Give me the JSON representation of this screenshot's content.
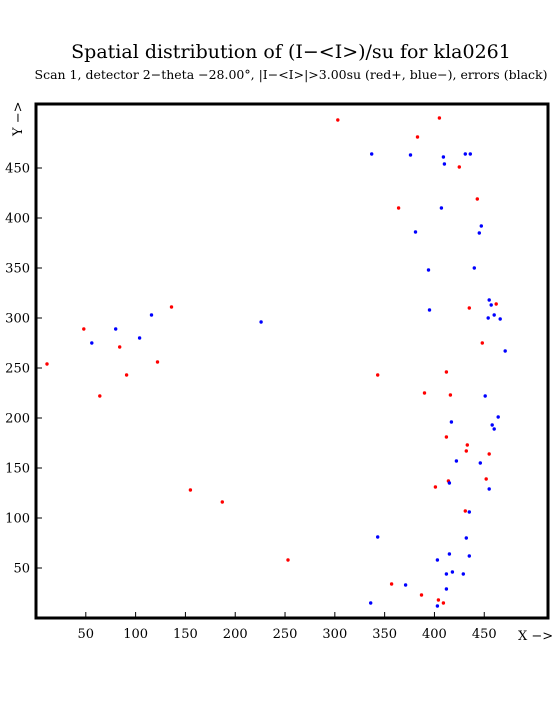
{
  "chart_data": {
    "type": "scatter",
    "title": "Spatial distribution of (I−<I>)/su for kla0261",
    "subtitle": "Scan  1, detector 2−theta −28.00°, |I−<I>|>3.00su (red+, blue−), errors (black)",
    "xlabel": "X −>",
    "ylabel": "Y −>",
    "xlim": [
      0,
      514
    ],
    "ylim": [
      0,
      514
    ],
    "x_ticks": [
      50,
      100,
      150,
      200,
      250,
      300,
      350,
      400,
      450
    ],
    "y_ticks": [
      50,
      100,
      150,
      200,
      250,
      300,
      350,
      400,
      450
    ],
    "grid": false,
    "series": [
      {
        "name": "red+",
        "color": "#ff0000",
        "points": [
          [
            303,
            498
          ],
          [
            405,
            500
          ],
          [
            383,
            481
          ],
          [
            425,
            451
          ],
          [
            443,
            419
          ],
          [
            364,
            410
          ],
          [
            136,
            311
          ],
          [
            48,
            289
          ],
          [
            435,
            310
          ],
          [
            462,
            314
          ],
          [
            84,
            271
          ],
          [
            122,
            256
          ],
          [
            11,
            254
          ],
          [
            448,
            275
          ],
          [
            91,
            243
          ],
          [
            343,
            243
          ],
          [
            412,
            246
          ],
          [
            64,
            222
          ],
          [
            390,
            225
          ],
          [
            416,
            223
          ],
          [
            412,
            181
          ],
          [
            433,
            173
          ],
          [
            432,
            167
          ],
          [
            455,
            164
          ],
          [
            414,
            137
          ],
          [
            452,
            139
          ],
          [
            155,
            128
          ],
          [
            401,
            131
          ],
          [
            187,
            116
          ],
          [
            431,
            107
          ],
          [
            253,
            58
          ],
          [
            357,
            34
          ],
          [
            387,
            23
          ],
          [
            404,
            18
          ],
          [
            409,
            15
          ]
        ]
      },
      {
        "name": "blue−",
        "color": "#0000ff",
        "points": [
          [
            337,
            464
          ],
          [
            376,
            463
          ],
          [
            431,
            464
          ],
          [
            436,
            464
          ],
          [
            409,
            461
          ],
          [
            410,
            454
          ],
          [
            407,
            410
          ],
          [
            447,
            392
          ],
          [
            381,
            386
          ],
          [
            445,
            385
          ],
          [
            394,
            348
          ],
          [
            440,
            350
          ],
          [
            455,
            318
          ],
          [
            457,
            313
          ],
          [
            116,
            303
          ],
          [
            395,
            308
          ],
          [
            460,
            303
          ],
          [
            454,
            300
          ],
          [
            466,
            299
          ],
          [
            80,
            289
          ],
          [
            226,
            296
          ],
          [
            104,
            280
          ],
          [
            56,
            275
          ],
          [
            471,
            267
          ],
          [
            451,
            222
          ],
          [
            464,
            201
          ],
          [
            417,
            196
          ],
          [
            458,
            193
          ],
          [
            460,
            189
          ],
          [
            422,
            157
          ],
          [
            446,
            155
          ],
          [
            415,
            135
          ],
          [
            455,
            129
          ],
          [
            435,
            106
          ],
          [
            343,
            81
          ],
          [
            432,
            80
          ],
          [
            415,
            64
          ],
          [
            435,
            62
          ],
          [
            403,
            58
          ],
          [
            418,
            46
          ],
          [
            412,
            44
          ],
          [
            429,
            44
          ],
          [
            371,
            33
          ],
          [
            412,
            29
          ],
          [
            336,
            15
          ],
          [
            403,
            12
          ]
        ]
      }
    ]
  }
}
